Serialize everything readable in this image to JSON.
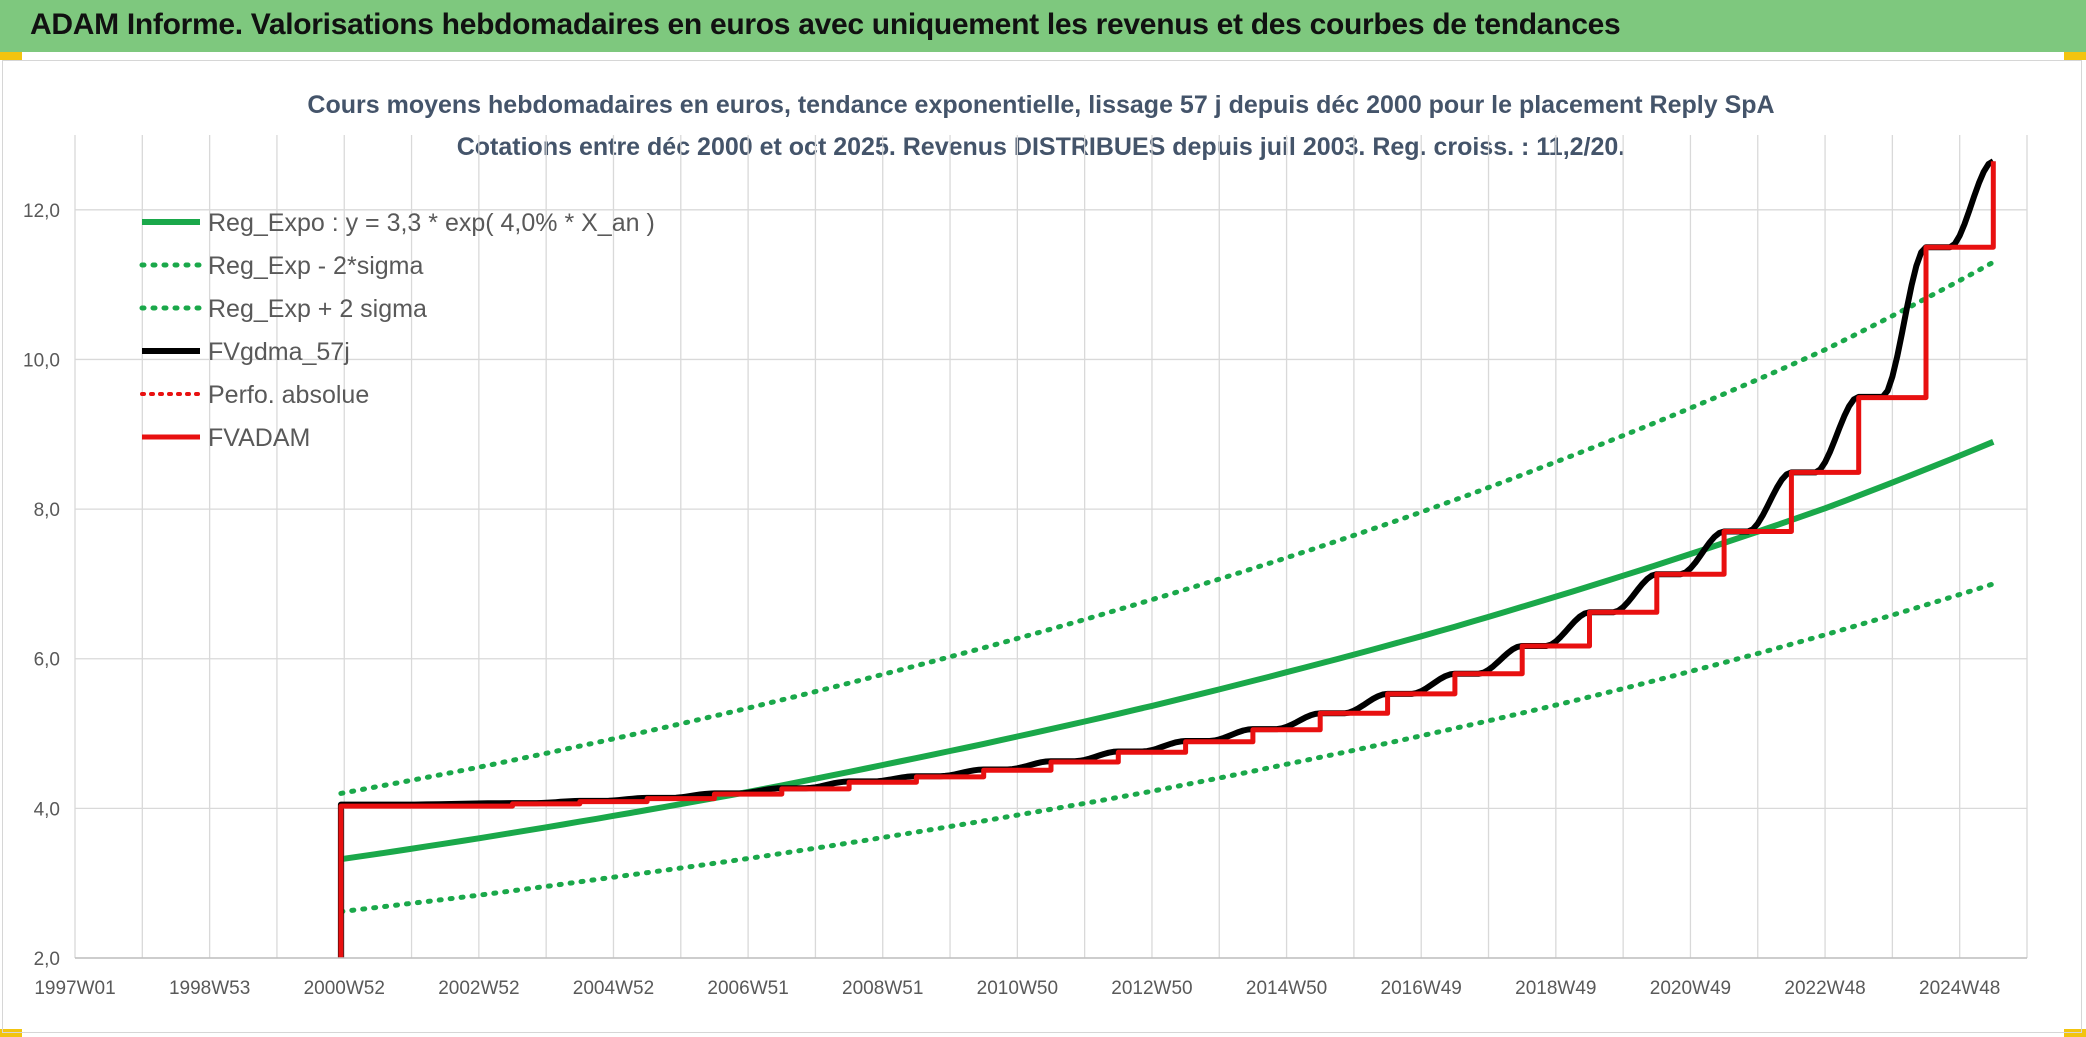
{
  "header": {
    "title": "ADAM Informe. Valorisations hebdomadaires en euros avec uniquement les revenus et des courbes de tendances"
  },
  "colors": {
    "banner": "#7ec87e",
    "trend": "#1aa84a",
    "band": "#1aa84a",
    "smooth": "#000000",
    "adam": "#e81010",
    "perfo": "#e81010",
    "grid": "#d9d9d9"
  },
  "chart_data": {
    "type": "line",
    "title": "Cours moyens hebdomadaires en euros, tendance exponentielle, lissage 57 j depuis déc 2000 pour le placement Reply SpA",
    "subtitle": "Cotations entre déc 2000 et oct 2025. Revenus DISTRIBUES depuis juil 2003. Reg. croiss. : 11,2/20.",
    "ylim": [
      2,
      13
    ],
    "yticks": [
      2,
      4,
      6,
      8,
      10,
      12
    ],
    "ytick_labels": [
      "2,0",
      "4,0",
      "6,0",
      "8,0",
      "10,0",
      "12,0"
    ],
    "xlim": [
      1997.0,
      2026.0
    ],
    "xtick_labels": [
      "1997W01",
      "1998W53",
      "2000W52",
      "2002W52",
      "2004W52",
      "2006W51",
      "2008W51",
      "2010W50",
      "2012W50",
      "2014W50",
      "2016W49",
      "2018W49",
      "2020W49",
      "2022W48",
      "2024W48"
    ],
    "xtick_values": [
      1997.0,
      1999.0,
      2001.0,
      2003.0,
      2005.0,
      2007.0,
      2009.0,
      2011.0,
      2013.0,
      2015.0,
      2017.0,
      2019.0,
      2021.0,
      2023.0,
      2025.0
    ],
    "grid": true,
    "legend_position": "top-left",
    "series": [
      {
        "name": "Reg_Expo : y = 3,3 * exp( 4,0% *  X_an )",
        "style": "solid-green",
        "x": [
          2000.95,
          2003,
          2005,
          2007,
          2009,
          2011,
          2013,
          2015,
          2017,
          2019,
          2021,
          2023,
          2025.5
        ],
        "y": [
          3.32,
          3.6,
          3.9,
          4.22,
          4.58,
          4.96,
          5.37,
          5.82,
          6.3,
          6.83,
          7.4,
          8.01,
          8.9
        ]
      },
      {
        "name": "Reg_Exp - 2*sigma",
        "style": "dotted-green",
        "x": [
          2000.95,
          2003,
          2005,
          2007,
          2009,
          2011,
          2013,
          2015,
          2017,
          2019,
          2021,
          2023,
          2025.5
        ],
        "y": [
          2.62,
          2.84,
          3.08,
          3.33,
          3.61,
          3.91,
          4.23,
          4.59,
          4.97,
          5.38,
          5.83,
          6.32,
          7.0
        ]
      },
      {
        "name": "Reg_Exp + 2 sigma",
        "style": "dotted-green",
        "x": [
          2000.95,
          2003,
          2005,
          2007,
          2009,
          2011,
          2013,
          2015,
          2017,
          2019,
          2021,
          2023,
          2025.5
        ],
        "y": [
          4.2,
          4.55,
          4.93,
          5.34,
          5.79,
          6.27,
          6.79,
          7.35,
          7.96,
          8.63,
          9.35,
          10.13,
          11.3
        ]
      },
      {
        "name": "FVgdma_57j",
        "style": "solid-black",
        "x": [
          2000.95,
          2003.5,
          2004.5,
          2005.5,
          2006.5,
          2007.5,
          2008.5,
          2009.5,
          2010.5,
          2011.5,
          2012.5,
          2013.5,
          2014.5,
          2015.5,
          2016.5,
          2017.5,
          2018.5,
          2019.5,
          2020.5,
          2021.5,
          2022.5,
          2023.5,
          2024.5,
          2025.5
        ],
        "y": [
          4.05,
          4.07,
          4.1,
          4.14,
          4.2,
          4.27,
          4.36,
          4.43,
          4.52,
          4.63,
          4.76,
          4.9,
          5.06,
          5.27,
          5.53,
          5.8,
          6.17,
          6.62,
          7.13,
          7.7,
          8.49,
          9.5,
          11.5,
          12.65
        ]
      },
      {
        "name": "Perfo. absolue",
        "style": "dotted-red",
        "x": [],
        "y": []
      },
      {
        "name": "FVADAM",
        "style": "step-red",
        "x": [
          2000.95,
          2003.5,
          2004.5,
          2005.5,
          2006.5,
          2007.5,
          2008.5,
          2009.5,
          2010.5,
          2011.5,
          2012.5,
          2013.5,
          2014.5,
          2015.5,
          2016.5,
          2017.5,
          2018.5,
          2019.5,
          2020.5,
          2021.5,
          2022.5,
          2023.5,
          2024.5,
          2025.5
        ],
        "y": [
          4.03,
          4.06,
          4.09,
          4.13,
          4.19,
          4.26,
          4.35,
          4.42,
          4.51,
          4.62,
          4.75,
          4.89,
          5.05,
          5.27,
          5.53,
          5.8,
          6.17,
          6.62,
          7.13,
          7.7,
          8.49,
          9.49,
          11.5,
          12.65
        ]
      }
    ]
  }
}
